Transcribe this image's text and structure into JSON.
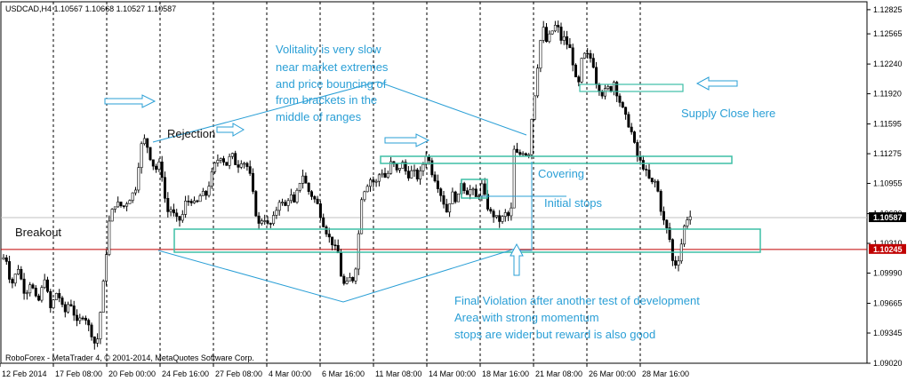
{
  "header": {
    "symbol": "USDCAD,H4",
    "quote": "1.10567 1.10668 1.10527 1.10587"
  },
  "footer": {
    "copyright": "RoboForex - MetaTrader 4, © 2001-2014, MetaQuotes Software Corp."
  },
  "colors": {
    "candle": "#000000",
    "grid": "#000000",
    "annotation": "#2a9fd6",
    "zone": "#3dbfa6",
    "bid_line": "#c0c0c0",
    "level_line": "#c00000",
    "bid_label_bg": "#000000",
    "level_label_bg": "#c00000"
  },
  "chart_data": {
    "type": "candlestick",
    "ylim": [
      1.0902,
      1.1291
    ],
    "y_ticks": [
      "1.12825",
      "1.12565",
      "1.12240",
      "1.11920",
      "1.11595",
      "1.11275",
      "1.10955",
      "1.10630",
      "1.10310",
      "1.09990",
      "1.09665",
      "1.09345",
      "1.09020"
    ],
    "x_ticks": [
      "12 Feb 2014",
      "17 Feb 08:00",
      "20 Feb 00:00",
      "24 Feb 16:00",
      "27 Feb 08:00",
      "4 Mar 00:00",
      "6 Mar 16:00",
      "11 Mar 08:00",
      "14 Mar 00:00",
      "18 Mar 16:00",
      "21 Mar 08:00",
      "26 Mar 00:00",
      "28 Mar 16:00"
    ],
    "current_price": {
      "label": "1.10587",
      "value": 1.10587
    },
    "key_level": {
      "label": "1.10245",
      "value": 1.10245
    },
    "path": [
      [
        0,
        1.101
      ],
      [
        8,
        1.1018
      ],
      [
        14,
        1.0985
      ],
      [
        22,
        1.1005
      ],
      [
        30,
        1.0975
      ],
      [
        36,
        1.099
      ],
      [
        44,
        1.0965
      ],
      [
        52,
        1.0995
      ],
      [
        58,
        1.096
      ],
      [
        66,
        1.098
      ],
      [
        74,
        1.0955
      ],
      [
        80,
        1.097
      ],
      [
        88,
        1.0945
      ],
      [
        96,
        1.0955
      ],
      [
        104,
        1.0935
      ],
      [
        110,
        1.0918
      ],
      [
        116,
        1.097
      ],
      [
        120,
        1.101
      ],
      [
        125,
        1.106
      ],
      [
        132,
        1.1075
      ],
      [
        140,
        1.107
      ],
      [
        148,
        1.108
      ],
      [
        154,
        1.109
      ],
      [
        158,
        1.112
      ],
      [
        162,
        1.1145
      ],
      [
        166,
        1.114
      ],
      [
        170,
        1.1125
      ],
      [
        174,
        1.1115
      ],
      [
        178,
        1.111
      ],
      [
        182,
        1.112
      ],
      [
        186,
        1.1085
      ],
      [
        190,
        1.1065
      ],
      [
        194,
        1.1068
      ],
      [
        198,
        1.106
      ],
      [
        202,
        1.1055
      ],
      [
        206,
        1.1058
      ],
      [
        210,
        1.1075
      ],
      [
        216,
        1.1078
      ],
      [
        222,
        1.1072
      ],
      [
        228,
        1.1085
      ],
      [
        234,
        1.1083
      ],
      [
        238,
        1.11
      ],
      [
        244,
        1.1118
      ],
      [
        250,
        1.1125
      ],
      [
        256,
        1.1115
      ],
      [
        262,
        1.1128
      ],
      [
        268,
        1.1113
      ],
      [
        274,
        1.1121
      ],
      [
        280,
        1.1113
      ],
      [
        284,
        1.11
      ],
      [
        288,
        1.107
      ],
      [
        292,
        1.105
      ],
      [
        298,
        1.106
      ],
      [
        304,
        1.1048
      ],
      [
        310,
        1.106
      ],
      [
        316,
        1.1078
      ],
      [
        322,
        1.107
      ],
      [
        328,
        1.1085
      ],
      [
        332,
        1.1072
      ],
      [
        338,
        1.1095
      ],
      [
        342,
        1.1105
      ],
      [
        348,
        1.1088
      ],
      [
        354,
        1.108
      ],
      [
        358,
        1.1075
      ],
      [
        364,
        1.1055
      ],
      [
        370,
        1.104
      ],
      [
        376,
        1.103
      ],
      [
        382,
        1.102
      ],
      [
        386,
        1.099
      ],
      [
        390,
        1.0985
      ],
      [
        396,
        1.0995
      ],
      [
        400,
        1.099
      ],
      [
        404,
        1.103
      ],
      [
        408,
        1.108
      ],
      [
        412,
        1.109
      ],
      [
        418,
        1.11
      ],
      [
        424,
        1.1095
      ],
      [
        430,
        1.111
      ],
      [
        436,
        1.11
      ],
      [
        442,
        1.112
      ],
      [
        448,
        1.1108
      ],
      [
        454,
        1.1118
      ],
      [
        460,
        1.1103
      ],
      [
        466,
        1.111
      ],
      [
        472,
        1.11
      ],
      [
        478,
        1.1118
      ],
      [
        482,
        1.113
      ],
      [
        486,
        1.111
      ],
      [
        492,
        1.1098
      ],
      [
        498,
        1.1082
      ],
      [
        504,
        1.1065
      ],
      [
        510,
        1.1085
      ],
      [
        516,
        1.1075
      ],
      [
        520,
        1.1098
      ],
      [
        526,
        1.1085
      ],
      [
        532,
        1.109
      ],
      [
        538,
        1.1078
      ],
      [
        544,
        1.1095
      ],
      [
        548,
        1.1075
      ],
      [
        552,
        1.1065
      ],
      [
        558,
        1.106
      ],
      [
        564,
        1.1055
      ],
      [
        570,
        1.1063
      ],
      [
        576,
        1.1058
      ],
      [
        580,
        1.1135
      ],
      [
        584,
        1.1125
      ],
      [
        590,
        1.113
      ],
      [
        596,
        1.1125
      ],
      [
        600,
        1.117
      ],
      [
        604,
        1.12
      ],
      [
        608,
        1.124
      ],
      [
        612,
        1.1265
      ],
      [
        616,
        1.1248
      ],
      [
        620,
        1.1255
      ],
      [
        624,
        1.1262
      ],
      [
        628,
        1.1268
      ],
      [
        632,
        1.125
      ],
      [
        636,
        1.1252
      ],
      [
        640,
        1.1244
      ],
      [
        644,
        1.1238
      ],
      [
        648,
        1.121
      ],
      [
        652,
        1.12
      ],
      [
        656,
        1.123
      ],
      [
        660,
        1.1235
      ],
      [
        664,
        1.1232
      ],
      [
        668,
        1.1228
      ],
      [
        672,
        1.1205
      ],
      [
        676,
        1.1196
      ],
      [
        680,
        1.119
      ],
      [
        684,
        1.12
      ],
      [
        688,
        1.1195
      ],
      [
        692,
        1.1205
      ],
      [
        696,
        1.119
      ],
      [
        700,
        1.118
      ],
      [
        706,
        1.1165
      ],
      [
        712,
        1.115
      ],
      [
        718,
        1.1125
      ],
      [
        724,
        1.1115
      ],
      [
        728,
        1.1108
      ],
      [
        734,
        1.1095
      ],
      [
        738,
        1.1098
      ],
      [
        742,
        1.1085
      ],
      [
        746,
        1.106
      ],
      [
        750,
        1.105
      ],
      [
        754,
        1.104
      ],
      [
        758,
        1.1012
      ],
      [
        762,
        1.1008
      ],
      [
        766,
        1.1018
      ],
      [
        770,
        1.1045
      ],
      [
        774,
        1.1058
      ],
      [
        778,
        1.106
      ]
    ],
    "annotations": [
      {
        "lines": [
          "Volitality is very slow",
          "near market extremes",
          "and price bouncing of",
          "from brackets in the",
          "middle of ranges"
        ]
      },
      {
        "lines": [
          "Rejection"
        ]
      },
      {
        "lines": [
          "Breakout"
        ]
      },
      {
        "lines": [
          "Covering"
        ]
      },
      {
        "lines": [
          "Initial stops"
        ]
      },
      {
        "lines": [
          "Supply Close here"
        ]
      },
      {
        "lines": [
          "Final Violation after another test of development",
          "Area with strong momentum",
          "stops are wider but reward is also good"
        ]
      }
    ]
  }
}
